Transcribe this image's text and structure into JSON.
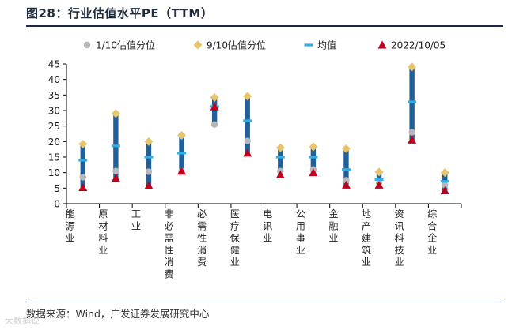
{
  "header": {
    "title": "图28：行业估值水平PE（TTM）"
  },
  "source": "数据来源：Wind，广发证券发展研究中心",
  "watermark": "大数据说",
  "colors": {
    "bar": "#1f5f9a",
    "p10": "#b7b7b7",
    "p90": "#e8c46a",
    "mean": "#2eb0e6",
    "current": "#c0001a",
    "axis": "#000000",
    "rule": "#1a2a44"
  },
  "chart_data": {
    "type": "range",
    "title": "行业估值水平PE（TTM）",
    "ylim": [
      0,
      45
    ],
    "yticks": [
      0,
      5,
      10,
      15,
      20,
      25,
      30,
      35,
      40,
      45
    ],
    "legend": [
      {
        "key": "p10",
        "label": "1/10估值分位"
      },
      {
        "key": "p90",
        "label": "9/10估值分位"
      },
      {
        "key": "mean",
        "label": "均值"
      },
      {
        "key": "current",
        "label": "2022/10/05"
      }
    ],
    "categories": [
      "能源业",
      "原材料业",
      "工业",
      "非必需性消费",
      "必需性消费",
      "医疗保健业",
      "电讯业",
      "公用事业",
      "金融业",
      "地产建筑业",
      "资讯科技业",
      "综合企业"
    ],
    "series": [
      {
        "name": "1/10估值分位",
        "key": "p10",
        "values": [
          8.5,
          10.5,
          10.3,
          10.5,
          25.5,
          20.2,
          10.5,
          11.0,
          7.5,
          6.5,
          23.0,
          6.0
        ]
      },
      {
        "name": "9/10估值分位",
        "key": "p90",
        "values": [
          19.2,
          29.0,
          20.0,
          22.0,
          34.2,
          34.6,
          18.0,
          18.3,
          17.7,
          10.2,
          44.0,
          10.0
        ]
      },
      {
        "name": "均值",
        "key": "mean",
        "values": [
          14.0,
          18.6,
          15.0,
          16.3,
          31.3,
          26.7,
          15.0,
          15.0,
          11.0,
          7.8,
          32.8,
          7.2
        ]
      },
      {
        "name": "2022/10/05",
        "key": "current",
        "values": [
          5.2,
          8.2,
          5.8,
          10.5,
          31.2,
          16.3,
          9.3,
          10.0,
          6.0,
          6.0,
          20.5,
          4.2
        ]
      }
    ]
  }
}
